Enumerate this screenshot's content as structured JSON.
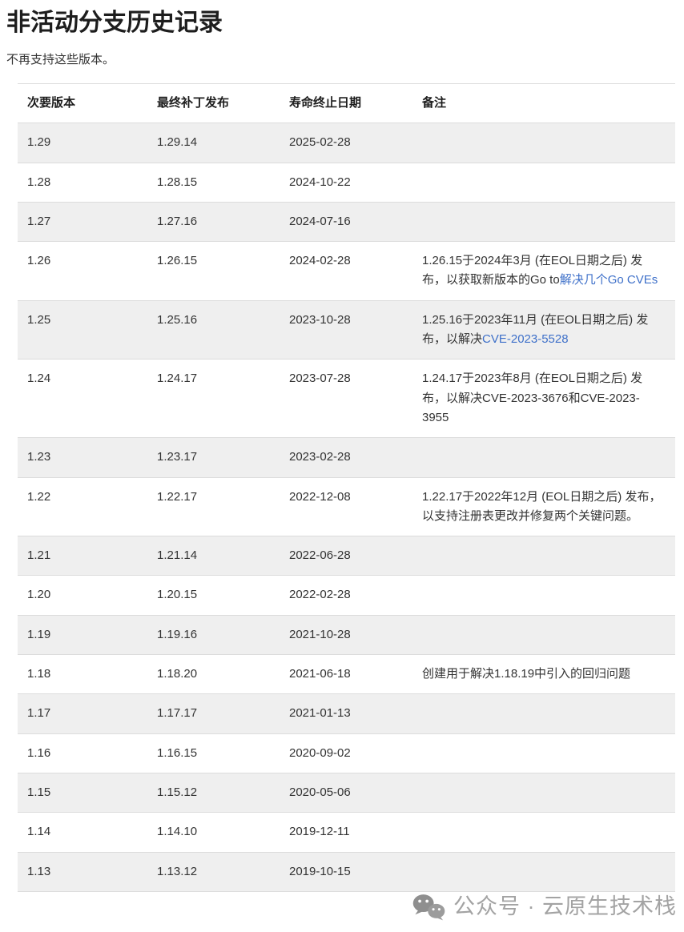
{
  "page": {
    "title": "非活动分支历史记录",
    "subtitle": "不再支持这些版本。"
  },
  "table": {
    "headers": [
      "次要版本",
      "最终补丁发布",
      "寿命终止日期",
      "备注"
    ],
    "rows": [
      {
        "minor": "1.29",
        "patch": "1.29.14",
        "eol": "2025-02-28",
        "note": []
      },
      {
        "minor": "1.28",
        "patch": "1.28.15",
        "eol": "2024-10-22",
        "note": []
      },
      {
        "minor": "1.27",
        "patch": "1.27.16",
        "eol": "2024-07-16",
        "note": []
      },
      {
        "minor": "1.26",
        "patch": "1.26.15",
        "eol": "2024-02-28",
        "note": [
          {
            "text": "1.26.15于2024年3月 (在EOL日期之后) 发布，以获取新版本的Go to",
            "link": false
          },
          {
            "text": "解决几个Go CVEs",
            "link": true
          }
        ]
      },
      {
        "minor": "1.25",
        "patch": "1.25.16",
        "eol": "2023-10-28",
        "note": [
          {
            "text": "1.25.16于2023年11月 (在EOL日期之后) 发布，以解决",
            "link": false
          },
          {
            "text": "CVE-2023-5528",
            "link": true
          }
        ]
      },
      {
        "minor": "1.24",
        "patch": "1.24.17",
        "eol": "2023-07-28",
        "note": [
          {
            "text": "1.24.17于2023年8月 (在EOL日期之后) 发布，以解决CVE-2023-3676和CVE-2023-3955",
            "link": false
          }
        ]
      },
      {
        "minor": "1.23",
        "patch": "1.23.17",
        "eol": "2023-02-28",
        "note": []
      },
      {
        "minor": "1.22",
        "patch": "1.22.17",
        "eol": "2022-12-08",
        "note": [
          {
            "text": "1.22.17于2022年12月 (EOL日期之后) 发布，以支持注册表更改并修复两个关键问题。",
            "link": false
          }
        ]
      },
      {
        "minor": "1.21",
        "patch": "1.21.14",
        "eol": "2022-06-28",
        "note": []
      },
      {
        "minor": "1.20",
        "patch": "1.20.15",
        "eol": "2022-02-28",
        "note": []
      },
      {
        "minor": "1.19",
        "patch": "1.19.16",
        "eol": "2021-10-28",
        "note": []
      },
      {
        "minor": "1.18",
        "patch": "1.18.20",
        "eol": "2021-06-18",
        "note": [
          {
            "text": "创建用于解决1.18.19中引入的回归问题",
            "link": false
          }
        ]
      },
      {
        "minor": "1.17",
        "patch": "1.17.17",
        "eol": "2021-01-13",
        "note": []
      },
      {
        "minor": "1.16",
        "patch": "1.16.15",
        "eol": "2020-09-02",
        "note": []
      },
      {
        "minor": "1.15",
        "patch": "1.15.12",
        "eol": "2020-05-06",
        "note": []
      },
      {
        "minor": "1.14",
        "patch": "1.14.10",
        "eol": "2019-12-11",
        "note": []
      },
      {
        "minor": "1.13",
        "patch": "1.13.12",
        "eol": "2019-10-15",
        "note": []
      }
    ]
  },
  "watermark": {
    "icon": "wechat-icon",
    "text": "公众号 · 云原生技术栈"
  },
  "colors": {
    "link": "#3e70c9",
    "stripe": "#efefef",
    "border": "#dcdcdc",
    "text": "#333333",
    "title": "#1d1d1d",
    "watermark": "#a3a3a3"
  }
}
